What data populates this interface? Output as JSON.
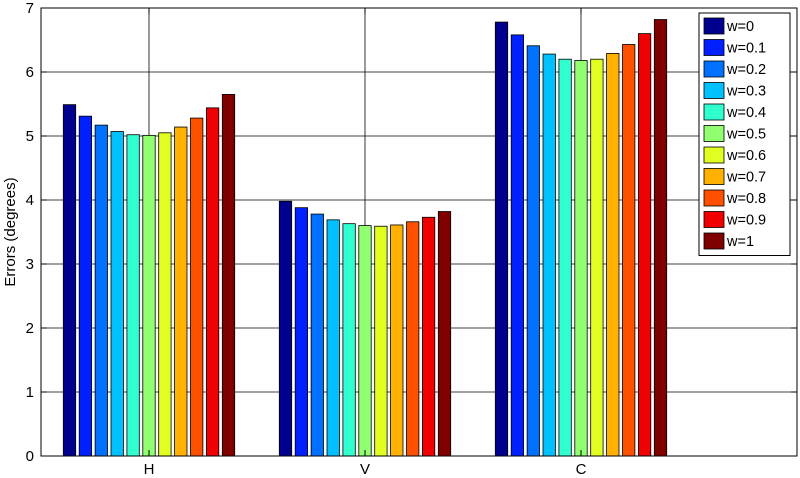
{
  "chart_data": {
    "type": "bar",
    "categories": [
      "H",
      "V",
      "C"
    ],
    "ylabel": "Errors (degrees)",
    "xlabel": "",
    "ylim": [
      0,
      7
    ],
    "yticks": [
      0,
      1,
      2,
      3,
      4,
      5,
      6,
      7
    ],
    "grid": true,
    "legend_position": "top-right",
    "series": [
      {
        "name": "w=0",
        "color": "#00008F",
        "values": [
          5.49,
          3.98,
          6.78
        ]
      },
      {
        "name": "w=0.1",
        "color": "#0020FF",
        "values": [
          5.31,
          3.88,
          6.58
        ]
      },
      {
        "name": "w=0.2",
        "color": "#0070FF",
        "values": [
          5.17,
          3.78,
          6.41
        ]
      },
      {
        "name": "w=0.3",
        "color": "#00C0FF",
        "values": [
          5.07,
          3.69,
          6.28
        ]
      },
      {
        "name": "w=0.4",
        "color": "#30FFD0",
        "values": [
          5.02,
          3.63,
          6.2
        ]
      },
      {
        "name": "w=0.5",
        "color": "#90FF70",
        "values": [
          5.01,
          3.6,
          6.18
        ]
      },
      {
        "name": "w=0.6",
        "color": "#E0FF20",
        "values": [
          5.05,
          3.59,
          6.2
        ]
      },
      {
        "name": "w=0.7",
        "color": "#FFB000",
        "values": [
          5.14,
          3.61,
          6.29
        ]
      },
      {
        "name": "w=0.8",
        "color": "#FF5000",
        "values": [
          5.28,
          3.66,
          6.43
        ]
      },
      {
        "name": "w=0.9",
        "color": "#F00000",
        "values": [
          5.44,
          3.73,
          6.6
        ]
      },
      {
        "name": "w=1",
        "color": "#800000",
        "values": [
          5.65,
          3.82,
          6.82
        ]
      }
    ]
  }
}
